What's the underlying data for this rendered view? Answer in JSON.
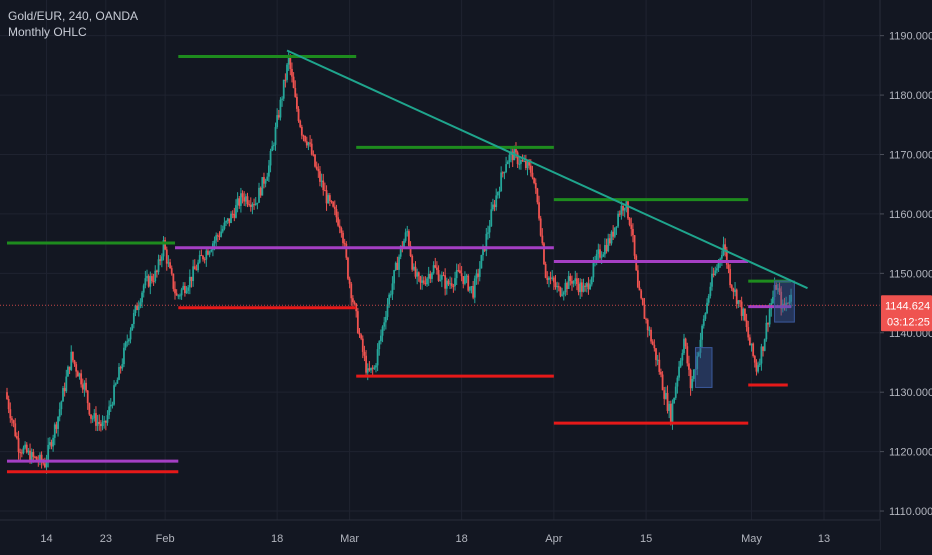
{
  "legend": {
    "symbol_line": "Gold/EUR, 240, OANDA",
    "indicator": "Monthly OHLC"
  },
  "colors": {
    "background": "#131722",
    "grid": "#1f2330",
    "text": "#b2b5be",
    "up": "#26a69a",
    "down": "#ef5350",
    "resistance": "#1e8c1e",
    "support": "#e61919",
    "pivot": "#a53fc4",
    "trendline": "#1fa58d",
    "price_tag_bg": "#ef5350",
    "box_fill": "#3b5a9e"
  },
  "chart_data": {
    "type": "candlestick",
    "title": "Gold/EUR, 240, OANDA",
    "subtitle": "Monthly OHLC",
    "y_range": [
      1109.5,
      1196
    ],
    "y_ticks": [
      "1110.000",
      "1120.000",
      "1130.000",
      "1140.000",
      "1150.000",
      "1160.000",
      "1170.000",
      "1180.000",
      "1190.000"
    ],
    "y_tick_values": [
      1110,
      1120,
      1130,
      1140,
      1150,
      1160,
      1170,
      1180,
      1190
    ],
    "x_range": [
      0,
      124
    ],
    "x_ticks": [
      {
        "label": "14",
        "x": 6
      },
      {
        "label": "23",
        "x": 15
      },
      {
        "label": "Feb",
        "x": 24
      },
      {
        "label": "18",
        "x": 41
      },
      {
        "label": "Mar",
        "x": 52
      },
      {
        "label": "18",
        "x": 69
      },
      {
        "label": "Apr",
        "x": 83
      },
      {
        "label": "15",
        "x": 97
      },
      {
        "label": "May",
        "x": 113
      },
      {
        "label": "13",
        "x": 124
      }
    ],
    "last_price": {
      "value": 1144.624,
      "label": "1144.624",
      "countdown": "03:12:25"
    },
    "price_path": [
      [
        0,
        1130
      ],
      [
        2,
        1121
      ],
      [
        4,
        1119
      ],
      [
        6,
        1118
      ],
      [
        8,
        1126
      ],
      [
        10,
        1136
      ],
      [
        12,
        1131
      ],
      [
        13,
        1126
      ],
      [
        15,
        1124
      ],
      [
        17,
        1132
      ],
      [
        19,
        1141
      ],
      [
        21,
        1148
      ],
      [
        23,
        1150
      ],
      [
        24,
        1155
      ],
      [
        25,
        1150
      ],
      [
        26,
        1146
      ],
      [
        28,
        1149
      ],
      [
        30,
        1153
      ],
      [
        32,
        1156
      ],
      [
        34,
        1159
      ],
      [
        36,
        1163
      ],
      [
        38,
        1162
      ],
      [
        40,
        1168
      ],
      [
        41,
        1174
      ],
      [
        43,
        1186
      ],
      [
        44,
        1179
      ],
      [
        45,
        1174
      ],
      [
        46,
        1172
      ],
      [
        47,
        1168
      ],
      [
        49,
        1162
      ],
      [
        51,
        1158
      ],
      [
        52,
        1150
      ],
      [
        53,
        1144
      ],
      [
        54,
        1138
      ],
      [
        55,
        1133
      ],
      [
        56,
        1134
      ],
      [
        58,
        1145
      ],
      [
        60,
        1154
      ],
      [
        61,
        1157
      ],
      [
        62,
        1150
      ],
      [
        63,
        1148
      ],
      [
        65,
        1151
      ],
      [
        67,
        1148
      ],
      [
        69,
        1150
      ],
      [
        71,
        1147
      ],
      [
        72,
        1151
      ],
      [
        74,
        1161
      ],
      [
        76,
        1169
      ],
      [
        77,
        1170
      ],
      [
        78,
        1169
      ],
      [
        80,
        1167
      ],
      [
        81,
        1160
      ],
      [
        82,
        1150
      ],
      [
        84,
        1147
      ],
      [
        86,
        1149
      ],
      [
        88,
        1147
      ],
      [
        90,
        1153
      ],
      [
        92,
        1156
      ],
      [
        93,
        1160
      ],
      [
        94,
        1162
      ],
      [
        95,
        1158
      ],
      [
        96,
        1147
      ],
      [
        97,
        1143
      ],
      [
        98,
        1139
      ],
      [
        99,
        1135
      ],
      [
        100,
        1130
      ],
      [
        101,
        1126
      ],
      [
        102,
        1133
      ],
      [
        103,
        1139
      ],
      [
        104,
        1131
      ],
      [
        105,
        1136
      ],
      [
        106,
        1142
      ],
      [
        107,
        1148
      ],
      [
        108,
        1151
      ],
      [
        109,
        1155
      ],
      [
        110,
        1149
      ],
      [
        111,
        1146
      ],
      [
        112,
        1143
      ],
      [
        113,
        1138
      ],
      [
        114,
        1134
      ],
      [
        115,
        1138
      ],
      [
        116,
        1144
      ],
      [
        117,
        1148
      ],
      [
        118,
        1144
      ],
      [
        119,
        1146
      ]
    ],
    "horizontal_levels": [
      {
        "kind": "resistance",
        "price": 1186.5,
        "x0": 26,
        "x1": 53
      },
      {
        "kind": "resistance",
        "price": 1171.2,
        "x0": 53,
        "x1": 83
      },
      {
        "kind": "resistance",
        "price": 1162.4,
        "x0": 83,
        "x1": 112.5
      },
      {
        "kind": "resistance",
        "price": 1155.1,
        "x0": 0,
        "x1": 25.5
      },
      {
        "kind": "resistance",
        "price": 1148.7,
        "x0": 112.5,
        "x1": 119
      },
      {
        "kind": "pivot",
        "price": 1118.4,
        "x0": 0,
        "x1": 26
      },
      {
        "kind": "pivot",
        "price": 1154.3,
        "x0": 25.5,
        "x1": 83
      },
      {
        "kind": "pivot",
        "price": 1152.0,
        "x0": 83,
        "x1": 112.5
      },
      {
        "kind": "pivot",
        "price": 1144.4,
        "x0": 112.5,
        "x1": 119
      },
      {
        "kind": "support",
        "price": 1116.6,
        "x0": 0,
        "x1": 26
      },
      {
        "kind": "support",
        "price": 1144.2,
        "x0": 26,
        "x1": 53
      },
      {
        "kind": "support",
        "price": 1132.7,
        "x0": 53,
        "x1": 83
      },
      {
        "kind": "support",
        "price": 1124.8,
        "x0": 83,
        "x1": 112.5
      },
      {
        "kind": "support",
        "price": 1131.2,
        "x0": 112.5,
        "x1": 118.5
      }
    ],
    "trendline": {
      "x0": 42.5,
      "y0": 1187.5,
      "x1": 121.5,
      "y1": 1147.5
    },
    "boxes": [
      {
        "x0": 104.5,
        "x1": 107,
        "y0": 1130.8,
        "y1": 1137.5
      },
      {
        "x0": 116.5,
        "x1": 119.5,
        "y0": 1141.8,
        "y1": 1148.7
      }
    ],
    "grid": true
  }
}
